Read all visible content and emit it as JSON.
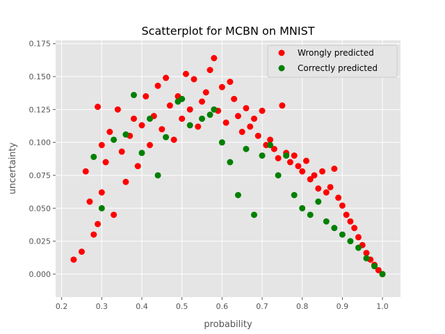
{
  "chart_data": {
    "type": "scatter",
    "title": "Scatterplot for MCBN on MNIST",
    "xlabel": "probability",
    "ylabel": "uncertainty",
    "xlim": [
      0.185,
      1.045
    ],
    "ylim": [
      -0.0175,
      0.1775
    ],
    "xticks": [
      0.2,
      0.3,
      0.4,
      0.5,
      0.6,
      0.7,
      0.8,
      0.9,
      1.0
    ],
    "xtick_labels": [
      "0.2",
      "0.3",
      "0.4",
      "0.5",
      "0.6",
      "0.7",
      "0.8",
      "0.9",
      "1.0"
    ],
    "yticks": [
      0.0,
      0.025,
      0.05,
      0.075,
      0.1,
      0.125,
      0.15,
      0.175
    ],
    "ytick_labels": [
      "0.000",
      "0.025",
      "0.050",
      "0.075",
      "0.100",
      "0.125",
      "0.150",
      "0.175"
    ],
    "grid": true,
    "legend_position": "top-right",
    "series": [
      {
        "name": "Wrongly predicted",
        "color": "#ff0000",
        "points": [
          [
            0.23,
            0.011
          ],
          [
            0.25,
            0.017
          ],
          [
            0.26,
            0.078
          ],
          [
            0.27,
            0.055
          ],
          [
            0.28,
            0.03
          ],
          [
            0.29,
            0.127
          ],
          [
            0.29,
            0.038
          ],
          [
            0.3,
            0.098
          ],
          [
            0.3,
            0.062
          ],
          [
            0.31,
            0.085
          ],
          [
            0.32,
            0.108
          ],
          [
            0.33,
            0.045
          ],
          [
            0.34,
            0.125
          ],
          [
            0.35,
            0.093
          ],
          [
            0.36,
            0.07
          ],
          [
            0.37,
            0.105
          ],
          [
            0.38,
            0.118
          ],
          [
            0.39,
            0.082
          ],
          [
            0.4,
            0.113
          ],
          [
            0.41,
            0.135
          ],
          [
            0.42,
            0.098
          ],
          [
            0.43,
            0.12
          ],
          [
            0.44,
            0.143
          ],
          [
            0.45,
            0.11
          ],
          [
            0.46,
            0.149
          ],
          [
            0.47,
            0.128
          ],
          [
            0.48,
            0.102
          ],
          [
            0.49,
            0.135
          ],
          [
            0.5,
            0.118
          ],
          [
            0.51,
            0.152
          ],
          [
            0.52,
            0.125
          ],
          [
            0.53,
            0.148
          ],
          [
            0.54,
            0.112
          ],
          [
            0.55,
            0.131
          ],
          [
            0.56,
            0.138
          ],
          [
            0.57,
            0.155
          ],
          [
            0.58,
            0.164
          ],
          [
            0.59,
            0.124
          ],
          [
            0.6,
            0.142
          ],
          [
            0.61,
            0.115
          ],
          [
            0.62,
            0.146
          ],
          [
            0.63,
            0.133
          ],
          [
            0.64,
            0.12
          ],
          [
            0.65,
            0.108
          ],
          [
            0.66,
            0.126
          ],
          [
            0.67,
            0.112
          ],
          [
            0.68,
            0.118
          ],
          [
            0.69,
            0.105
          ],
          [
            0.7,
            0.124
          ],
          [
            0.71,
            0.098
          ],
          [
            0.72,
            0.102
          ],
          [
            0.73,
            0.095
          ],
          [
            0.74,
            0.088
          ],
          [
            0.75,
            0.128
          ],
          [
            0.76,
            0.092
          ],
          [
            0.77,
            0.085
          ],
          [
            0.78,
            0.09
          ],
          [
            0.79,
            0.082
          ],
          [
            0.8,
            0.078
          ],
          [
            0.81,
            0.086
          ],
          [
            0.82,
            0.072
          ],
          [
            0.83,
            0.075
          ],
          [
            0.84,
            0.065
          ],
          [
            0.85,
            0.078
          ],
          [
            0.86,
            0.062
          ],
          [
            0.87,
            0.066
          ],
          [
            0.88,
            0.08
          ],
          [
            0.89,
            0.058
          ],
          [
            0.9,
            0.052
          ],
          [
            0.91,
            0.045
          ],
          [
            0.92,
            0.04
          ],
          [
            0.93,
            0.035
          ],
          [
            0.94,
            0.028
          ],
          [
            0.95,
            0.022
          ],
          [
            0.96,
            0.016
          ],
          [
            0.97,
            0.011
          ],
          [
            0.98,
            0.007
          ],
          [
            0.99,
            0.003
          ],
          [
            1.0,
            0.0
          ]
        ]
      },
      {
        "name": "Correctly predicted",
        "color": "#008000",
        "points": [
          [
            0.28,
            0.089
          ],
          [
            0.3,
            0.05
          ],
          [
            0.33,
            0.102
          ],
          [
            0.36,
            0.106
          ],
          [
            0.38,
            0.136
          ],
          [
            0.4,
            0.092
          ],
          [
            0.42,
            0.118
          ],
          [
            0.44,
            0.075
          ],
          [
            0.46,
            0.104
          ],
          [
            0.49,
            0.131
          ],
          [
            0.5,
            0.133
          ],
          [
            0.52,
            0.113
          ],
          [
            0.55,
            0.118
          ],
          [
            0.57,
            0.121
          ],
          [
            0.58,
            0.125
          ],
          [
            0.6,
            0.1
          ],
          [
            0.62,
            0.085
          ],
          [
            0.64,
            0.06
          ],
          [
            0.66,
            0.095
          ],
          [
            0.68,
            0.045
          ],
          [
            0.7,
            0.09
          ],
          [
            0.72,
            0.098
          ],
          [
            0.74,
            0.075
          ],
          [
            0.76,
            0.09
          ],
          [
            0.78,
            0.06
          ],
          [
            0.8,
            0.05
          ],
          [
            0.82,
            0.045
          ],
          [
            0.84,
            0.055
          ],
          [
            0.86,
            0.04
          ],
          [
            0.88,
            0.035
          ],
          [
            0.9,
            0.03
          ],
          [
            0.92,
            0.025
          ],
          [
            0.94,
            0.02
          ],
          [
            0.96,
            0.012
          ],
          [
            0.98,
            0.006
          ],
          [
            1.0,
            0.0
          ]
        ]
      }
    ]
  }
}
